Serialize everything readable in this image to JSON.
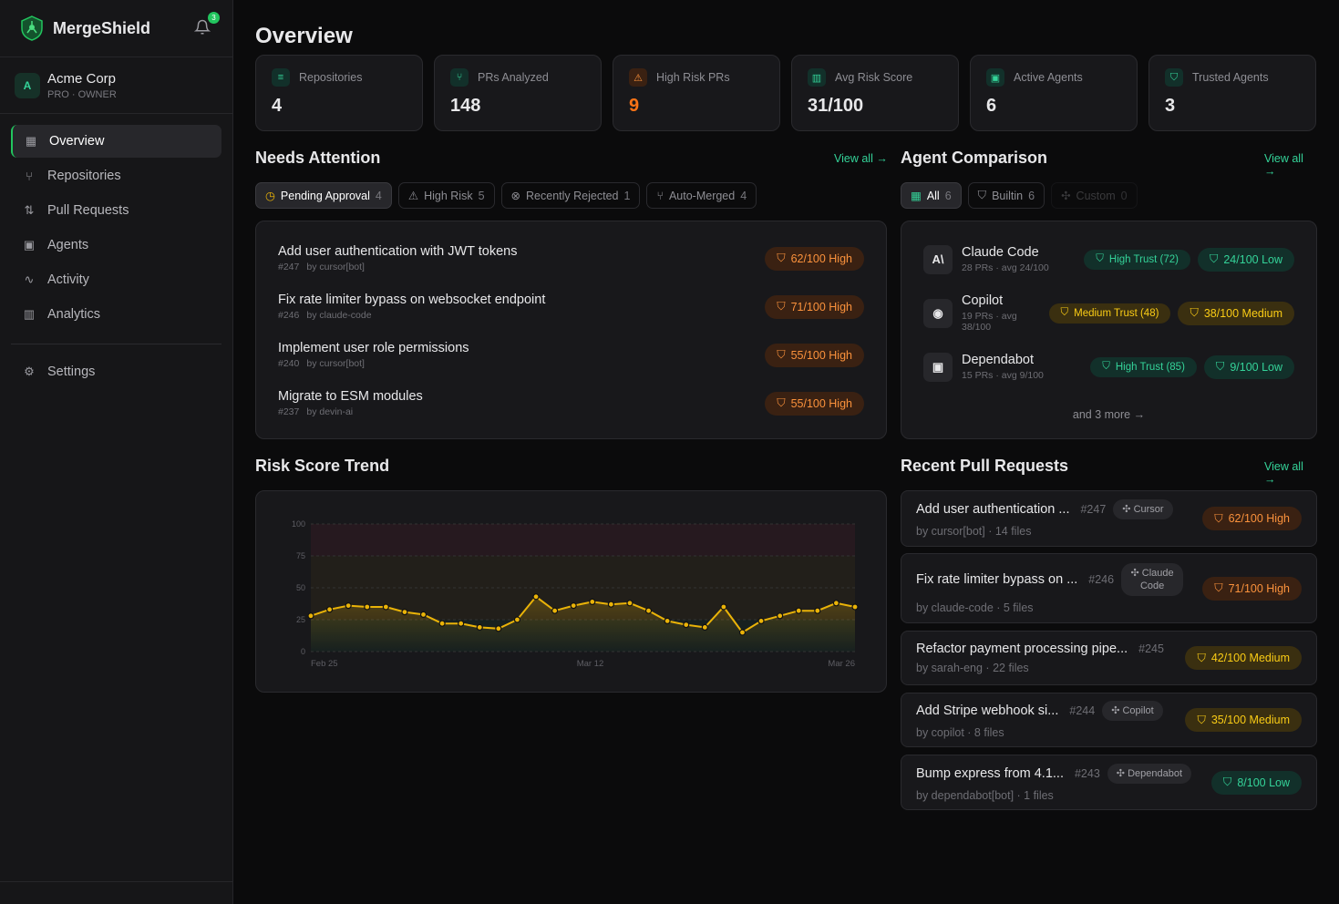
{
  "app": {
    "name": "MergeShield",
    "notifications": "3"
  },
  "org": {
    "initial": "A",
    "name": "Acme Corp",
    "role": "PRO · OWNER"
  },
  "nav": [
    {
      "label": "Overview",
      "icon": "grid-icon",
      "active": true
    },
    {
      "label": "Repositories",
      "icon": "repo-icon"
    },
    {
      "label": "Pull Requests",
      "icon": "pull-request-icon"
    },
    {
      "label": "Agents",
      "icon": "bot-icon"
    },
    {
      "label": "Activity",
      "icon": "activity-icon"
    },
    {
      "label": "Analytics",
      "icon": "bar-chart-icon"
    }
  ],
  "settings": {
    "label": "Settings",
    "icon": "gear-icon"
  },
  "page_title": "Overview",
  "stats": [
    {
      "label": "Repositories",
      "value": "4",
      "icon": "database-icon"
    },
    {
      "label": "PRs Analyzed",
      "value": "148",
      "icon": "git-pull-icon"
    },
    {
      "label": "High Risk PRs",
      "value": "9",
      "icon": "warning-icon",
      "color": "#f97316"
    },
    {
      "label": "Avg Risk Score",
      "value": "31/100",
      "icon": "chart-icon"
    },
    {
      "label": "Active Agents",
      "value": "6",
      "icon": "bot-icon"
    },
    {
      "label": "Trusted Agents",
      "value": "3",
      "icon": "shield-check-icon"
    }
  ],
  "attention": {
    "title": "Needs Attention",
    "view_all": "View all →",
    "tabs": [
      {
        "label": "Pending Approval",
        "count": "4",
        "icon": "◷"
      },
      {
        "label": "High Risk",
        "count": "5",
        "icon": "⚠"
      },
      {
        "label": "Recently Rejected",
        "count": "1",
        "icon": "⊗"
      },
      {
        "label": "Auto-Merged",
        "count": "4",
        "icon": "⑂"
      }
    ],
    "items": [
      {
        "title": "Add user authentication with JWT tokens",
        "num": "#247",
        "by": "by cursor[bot]",
        "risk": "62/100 High"
      },
      {
        "title": "Fix rate limiter bypass on websocket endpoint",
        "num": "#246",
        "by": "by claude-code",
        "risk": "71/100 High"
      },
      {
        "title": "Implement user role permissions",
        "num": "#240",
        "by": "by cursor[bot]",
        "risk": "55/100 High"
      },
      {
        "title": "Migrate to ESM modules",
        "num": "#237",
        "by": "by devin-ai",
        "risk": "55/100 High"
      }
    ]
  },
  "agents": {
    "title": "Agent Comparison",
    "view_all": "View all →",
    "tabs": [
      {
        "label": "All",
        "count": "6"
      },
      {
        "label": "Builtin",
        "count": "6"
      },
      {
        "label": "Custom",
        "count": "0"
      }
    ],
    "items": [
      {
        "name": "Claude Code",
        "stats": "28 PRs · avg 24/100",
        "trust": "High Trust (72)",
        "risk": "24/100 Low",
        "level": "low",
        "icon": "anthropic-icon",
        "glyph": "A\\"
      },
      {
        "name": "Copilot",
        "stats": "19 PRs · avg 38/100",
        "trust": "Medium Trust (48)",
        "risk": "38/100 Medium",
        "level": "med",
        "icon": "github-icon",
        "glyph": "◉"
      },
      {
        "name": "Dependabot",
        "stats": "15 PRs · avg 9/100",
        "trust": "High Trust (85)",
        "risk": "9/100 Low",
        "level": "low",
        "icon": "robot-icon",
        "glyph": "▣"
      }
    ],
    "more": "and 3 more →"
  },
  "trend": {
    "title": "Risk Score Trend"
  },
  "chart_data": {
    "type": "line",
    "y_ticks": [
      0,
      25,
      50,
      75,
      100
    ],
    "ylim": [
      0,
      100
    ],
    "x_labels": [
      "Feb 25",
      "Mar 12",
      "Mar 26"
    ],
    "values": [
      28,
      33,
      36,
      35,
      35,
      31,
      29,
      22,
      22,
      19,
      18,
      25,
      43,
      32,
      36,
      39,
      37,
      38,
      32,
      24,
      21,
      19,
      35,
      15,
      24,
      28,
      32,
      32,
      38,
      35
    ],
    "line_color": "#eab308",
    "grid": "dashed horizontal"
  },
  "recent": {
    "title": "Recent Pull Requests",
    "view_all": "View all →",
    "items": [
      {
        "title": "Add user authentication ...",
        "num": "#247",
        "agent": "Cursor",
        "by": "by cursor[bot] · 14 files",
        "risk": "62/100 High",
        "level": "high"
      },
      {
        "title": "Fix rate limiter bypass on ...",
        "num": "#246",
        "agent": "Claude Code",
        "by": "by claude-code · 5 files",
        "risk": "71/100 High",
        "level": "high"
      },
      {
        "title": "Refactor payment processing pipe...",
        "num": "#245",
        "agent": "",
        "by": "by sarah-eng · 22 files",
        "risk": "42/100 Medium",
        "level": "med"
      },
      {
        "title": "Add Stripe webhook si...",
        "num": "#244",
        "agent": "Copilot",
        "by": "by copilot · 8 files",
        "risk": "35/100 Medium",
        "level": "med"
      },
      {
        "title": "Bump express from 4.1...",
        "num": "#243",
        "agent": "Dependabot",
        "by": "by dependabot[bot] · 1 files",
        "risk": "8/100 Low",
        "level": "low"
      }
    ]
  }
}
